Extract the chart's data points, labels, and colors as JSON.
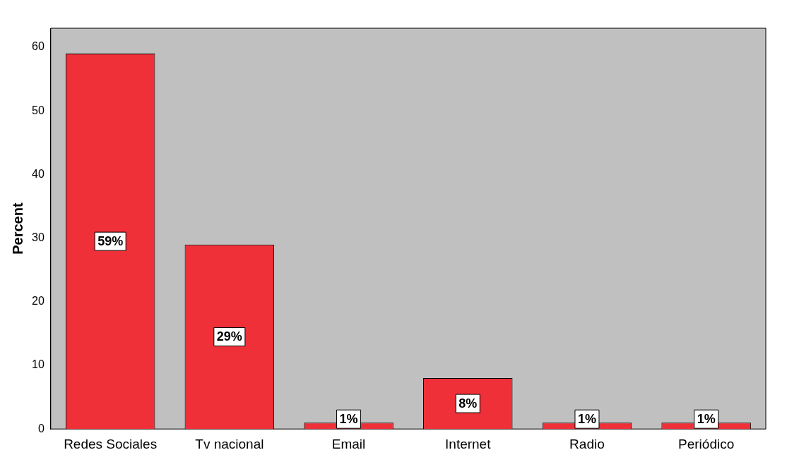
{
  "chart_data": {
    "type": "bar",
    "ylabel": "Percent",
    "categories": [
      "Redes Sociales",
      "Tv nacional",
      "Email",
      "Internet",
      "Radio",
      "Periódico"
    ],
    "values": [
      59,
      29,
      1,
      8,
      1,
      1
    ],
    "value_labels": [
      "59%",
      "29%",
      "1%",
      "8%",
      "1%",
      "1%"
    ],
    "color": "#ef3038",
    "ylim": [
      0,
      63
    ],
    "yticks": [
      0,
      10,
      20,
      30,
      40,
      50,
      60
    ],
    "grid": false,
    "legend": false
  }
}
